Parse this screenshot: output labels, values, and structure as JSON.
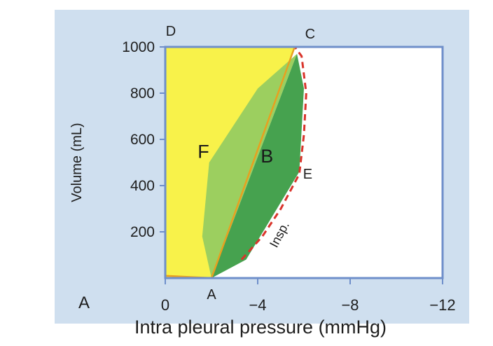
{
  "chart_data": {
    "type": "line",
    "panel_label": "A",
    "xlabel": "Intra pleural pressure (mmHg)",
    "ylabel": "Volume (mL)",
    "xlim": [
      0,
      -12
    ],
    "ylim": [
      0,
      1000
    ],
    "x_ticks": [
      "0",
      "−4",
      "−8",
      "−12"
    ],
    "x_tick_values": [
      0,
      -4,
      -8,
      -12
    ],
    "y_ticks": [
      "200",
      "400",
      "600",
      "800",
      "1000"
    ],
    "y_tick_values": [
      200,
      400,
      600,
      800,
      1000
    ],
    "grid": false,
    "points": [
      {
        "label": "A",
        "x": -2.0,
        "y": 0
      },
      {
        "label": "C",
        "x": -5.6,
        "y": 1000
      },
      {
        "label": "D",
        "x": 0.0,
        "y": 1000
      },
      {
        "label": "E",
        "x": -5.8,
        "y": 460
      }
    ],
    "region_labels": [
      {
        "label": "F",
        "x": -1.65,
        "y": 520
      },
      {
        "label": "B",
        "x": -4.4,
        "y": 500
      }
    ],
    "annotation": {
      "text": "Insp.",
      "x": -5.1,
      "y": 180
    },
    "regions": [
      {
        "fill": "#f8f24a",
        "points": [
          [
            0,
            0
          ],
          [
            0,
            1000
          ],
          [
            -5.6,
            1000
          ],
          [
            -2.0,
            0
          ]
        ]
      },
      {
        "fill": "#9ccf5f",
        "points": [
          [
            -2.0,
            0
          ],
          [
            -1.6,
            180
          ],
          [
            -1.9,
            500
          ],
          [
            -4.0,
            820
          ],
          [
            -5.7,
            970
          ]
        ]
      },
      {
        "fill": "#46a24f",
        "points": [
          [
            -2.0,
            0
          ],
          [
            -5.7,
            970
          ],
          [
            -6.0,
            820
          ],
          [
            -5.8,
            460
          ],
          [
            -3.5,
            80
          ]
        ]
      }
    ],
    "series": [
      {
        "style": "dashed",
        "color": "#d9342b",
        "x": [
          -3.3,
          -4.2,
          -5.0,
          -5.8,
          -6.0,
          -6.1,
          -5.9,
          -5.6
        ],
        "y": [
          80,
          180,
          300,
          450,
          620,
          800,
          960,
          1000
        ]
      },
      {
        "style": "solid",
        "color": "#e8a020",
        "x": [
          0,
          -2.0,
          -5.6
        ],
        "y": [
          10,
          0,
          1000
        ]
      }
    ],
    "colors": {
      "background": "#cfdfef",
      "axis_frame": "#6f8fca",
      "plot_area": "#ffffff"
    }
  }
}
